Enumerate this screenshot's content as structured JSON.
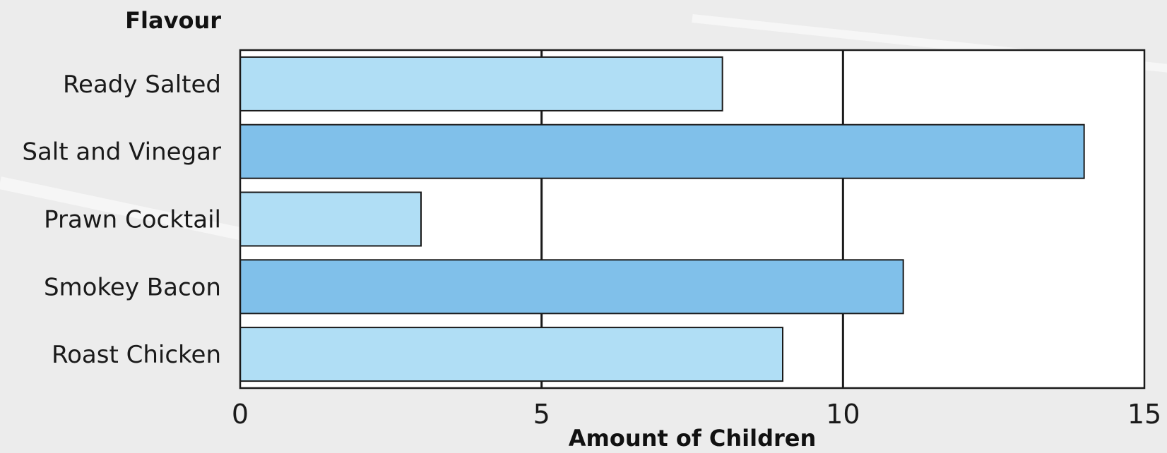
{
  "chart_data": {
    "type": "bar",
    "orientation": "horizontal",
    "title": "",
    "ylabel": "Flavour",
    "xlabel": "Amount of Children",
    "categories": [
      "Ready Salted",
      "Salt and Vinegar",
      "Prawn Cocktail",
      "Smokey Bacon",
      "Roast Chicken"
    ],
    "values": [
      8,
      14,
      3,
      11,
      9
    ],
    "xlim": [
      0,
      15
    ],
    "xticks": [
      "0",
      "5",
      "10",
      "15"
    ],
    "grid": true,
    "legend": "none",
    "colors": {
      "light_bar": "#b0def5",
      "dark_bar": "#80c0ea",
      "bar_stroke": "#1a1a1a",
      "plot_background": "#ffffff"
    }
  }
}
